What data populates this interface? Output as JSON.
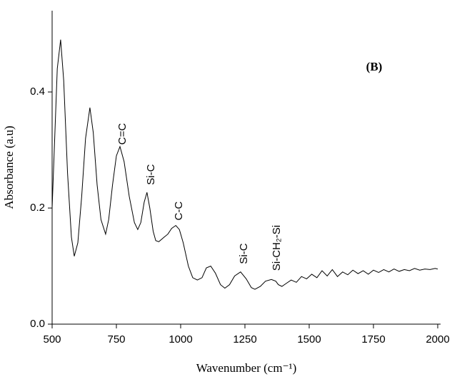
{
  "chart_data": {
    "type": "line",
    "x_label": "Wavenumber (cm⁻¹)",
    "y_label": "Absorbance (a.u)",
    "annotations": [
      "C=C",
      "Si-C",
      "C-C",
      "Si-C",
      "Si-CH₂-Si",
      "(B)"
    ],
    "x": [
      500,
      510,
      520,
      533,
      545,
      560,
      575,
      586,
      600,
      615,
      630,
      647,
      660,
      675,
      690,
      708,
      720,
      735,
      750,
      764,
      780,
      800,
      820,
      833,
      845,
      858,
      869,
      880,
      893,
      903,
      915,
      936,
      950,
      965,
      981,
      995,
      1010,
      1030,
      1047,
      1065,
      1083,
      1100,
      1117,
      1135,
      1155,
      1172,
      1190,
      1210,
      1233,
      1255,
      1275,
      1289,
      1310,
      1330,
      1353,
      1370,
      1380,
      1394,
      1410,
      1430,
      1450,
      1470,
      1490,
      1510,
      1530,
      1550,
      1570,
      1590,
      1610,
      1630,
      1650,
      1670,
      1690,
      1710,
      1730,
      1750,
      1770,
      1790,
      1810,
      1830,
      1850,
      1870,
      1890,
      1910,
      1930,
      1950,
      1970,
      1990,
      2000
    ],
    "series": [
      {
        "color": "#000000",
        "values": [
          0.2,
          0.32,
          0.44,
          0.49,
          0.42,
          0.26,
          0.15,
          0.117,
          0.14,
          0.22,
          0.32,
          0.373,
          0.33,
          0.24,
          0.18,
          0.155,
          0.18,
          0.24,
          0.29,
          0.306,
          0.28,
          0.22,
          0.175,
          0.163,
          0.175,
          0.21,
          0.227,
          0.2,
          0.16,
          0.144,
          0.142,
          0.15,
          0.155,
          0.165,
          0.17,
          0.163,
          0.14,
          0.1,
          0.08,
          0.076,
          0.08,
          0.097,
          0.1,
          0.088,
          0.068,
          0.062,
          0.068,
          0.083,
          0.09,
          0.078,
          0.063,
          0.06,
          0.065,
          0.074,
          0.077,
          0.074,
          0.068,
          0.065,
          0.07,
          0.076,
          0.072,
          0.082,
          0.078,
          0.086,
          0.08,
          0.092,
          0.083,
          0.094,
          0.082,
          0.09,
          0.085,
          0.093,
          0.087,
          0.092,
          0.086,
          0.093,
          0.089,
          0.094,
          0.09,
          0.095,
          0.091,
          0.094,
          0.092,
          0.096,
          0.093,
          0.095,
          0.094,
          0.096,
          0.095
        ]
      }
    ],
    "xlim": [
      500,
      2000
    ],
    "ylim": [
      0,
      0.54
    ],
    "xticks": [
      500,
      750,
      1000,
      1250,
      1500,
      1750,
      2000
    ],
    "yticks": [
      {
        "value": 0,
        "label": "0.0"
      },
      0.2,
      0.4
    ]
  }
}
